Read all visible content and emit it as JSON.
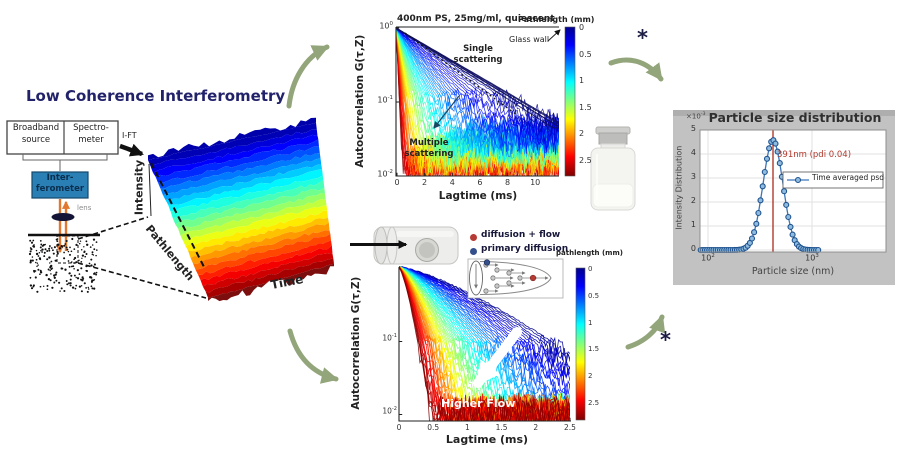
{
  "title": "Low Coherence Interferometry",
  "diagram": {
    "box_broadband": [
      "Broadband",
      "source"
    ],
    "box_spectrometer": [
      "Spectro-",
      "meter"
    ],
    "ift": "I-FT",
    "interferometer": [
      "Inter-",
      "ferometer"
    ],
    "lens": "lens",
    "waterfall_axes": {
      "z": "Intensity",
      "y": "Pathlength",
      "x": "Time"
    }
  },
  "quiescent_plot": {
    "title": "400nm PS, 25mg/ml, quiescent",
    "ylabel": "Autocorrelation G(τ,Z)",
    "xlabel": "Lagtime (ms)",
    "colorbar_label": "Pathlength (mm)",
    "colorbar_ticks": [
      "0",
      "0.5",
      "1",
      "1.5",
      "2",
      "2.5"
    ],
    "xticks": [
      "0",
      "2",
      "4",
      "6",
      "8",
      "10"
    ],
    "yticks": [
      [
        "10",
        "0"
      ],
      [
        "10",
        "-1"
      ],
      [
        "10",
        "-2"
      ]
    ],
    "ann_glass_wall": "Glass wall",
    "ann_single": [
      "Single",
      "scattering"
    ],
    "ann_multiple": [
      "Multiple",
      "scattering"
    ]
  },
  "flow_plot": {
    "ylabel": "Autocorrelation G(τ,Z)",
    "xlabel": "Lagtime (ms)",
    "colorbar_label": "pathlength (mm)",
    "colorbar_ticks": [
      "0",
      "0.5",
      "1",
      "1.5",
      "2",
      "2.5"
    ],
    "xticks": [
      "0",
      "0.5",
      "1",
      "1.5",
      "2",
      "2.5"
    ],
    "yticks": [
      [
        "10",
        "-1"
      ],
      [
        "10",
        "-2"
      ]
    ],
    "legend": [
      {
        "label": "diffusion + flow",
        "color": "#b63b34"
      },
      {
        "label": "primary diffusion",
        "color": "#344f8c"
      }
    ],
    "ann_flow": "Higher Flow"
  },
  "psd_plot": {
    "title": "Particle size distribution",
    "ylabel": "Intensity Distribution",
    "xlabel": "Particle size (nm)",
    "y_multiplier": [
      "×10",
      "-3"
    ],
    "yticks": [
      "0",
      "1",
      "2",
      "3",
      "4",
      "5"
    ],
    "xticks": [
      [
        "10",
        "2"
      ],
      [
        "10",
        "3"
      ],
      [
        "10",
        "4"
      ]
    ],
    "annotation": "391nm (pdi 0.04)",
    "legend": "Time averaged psd"
  },
  "asterisk": "*",
  "colors": {
    "arrow_green": "#93a57a",
    "title_navy": "#22226b",
    "interferometer_fill": "#2a7fb5",
    "interferometer_text": "#0b2f4e",
    "beam_orange": "#e2782f",
    "annotation_red": "#b03a2e",
    "psd_line_blue": "#3a76ba",
    "psd_marker_fill": "#8fbbdf",
    "psd_marker_edge": "#1f538f",
    "panel_gray": "#c2c2c2",
    "multiple_arrow": "#1d4663"
  },
  "chart_data": [
    {
      "id": "autocorrelation-quiescent",
      "type": "line",
      "title": "400nm PS, 25mg/ml, quiescent",
      "xlabel": "Lagtime (ms)",
      "ylabel": "Autocorrelation G(τ,Z)",
      "x_scale": "linear",
      "y_scale": "log",
      "xlim": [
        0,
        11.8
      ],
      "ylim": [
        0.01,
        1
      ],
      "xticks": [
        0,
        2,
        4,
        6,
        8,
        10
      ],
      "yticks_log10": [
        0,
        -1,
        -2
      ],
      "colorbar": {
        "label": "Pathlength (mm)",
        "min": 0,
        "max": 2.5,
        "ticks": [
          0,
          0.5,
          1,
          1.5,
          2,
          2.5
        ],
        "colormap": "jet",
        "orientation": "vertical"
      },
      "series_summary": [
        {
          "name": "single scattering envelope (pathlength ~0, glass wall, dark blue)",
          "x": [
            0,
            2,
            4,
            6,
            8,
            10,
            11.8
          ],
          "G": [
            1.0,
            0.55,
            0.31,
            0.17,
            0.095,
            0.055,
            0.045
          ]
        },
        {
          "name": "multiple scattering (pathlength ~2.5 mm, dark red)",
          "x": [
            0,
            0.2,
            0.4,
            0.6
          ],
          "G": [
            1.0,
            0.18,
            0.035,
            0.012
          ]
        }
      ],
      "annotations": [
        "Glass wall",
        "Single scattering",
        "Multiple scattering"
      ],
      "description": "Fan of ~70 exponentially decaying autocorrelation curves colored by pathlength (jet colormap); shallow-pathlength (blue) curves decay slowly, deep-pathlength (red) curves decay fast; noise floor speckle near G=0.01-0.05"
    },
    {
      "id": "autocorrelation-flow",
      "type": "line",
      "xlabel": "Lagtime (ms)",
      "ylabel": "Autocorrelation G(τ,Z)",
      "x_scale": "linear",
      "y_scale": "log",
      "xlim": [
        0,
        2.52
      ],
      "ylim": [
        0.01,
        1
      ],
      "xticks": [
        0,
        0.5,
        1,
        1.5,
        2,
        2.5
      ],
      "yticks_log10": [
        -1,
        -2
      ],
      "colorbar": {
        "label": "pathlength (mm)",
        "min": 0,
        "max": 2.5,
        "ticks": [
          0,
          0.5,
          1,
          1.5,
          2,
          2.5
        ],
        "colormap": "jet",
        "orientation": "vertical"
      },
      "legend": [
        "diffusion + flow",
        "primary diffusion"
      ],
      "series_summary": [
        {
          "name": "primary diffusion (pathlength ~0, blue)",
          "x": [
            0,
            1,
            2,
            2.5
          ],
          "G": [
            1.0,
            0.45,
            0.13,
            0.07
          ]
        },
        {
          "name": "diffusion + flow (pathlength ~2.5 mm, red)",
          "x": [
            0,
            0.2,
            0.45
          ],
          "G": [
            1.0,
            0.3,
            0.01
          ]
        }
      ],
      "annotations": [
        "Higher Flow (white arrow pointing down-left)"
      ],
      "description": "Fan of decaying autocorrelation curves under flow; deeper pathlength (red) decays fastest; white arrow labelled Higher Flow points toward faster decay"
    },
    {
      "id": "particle-size-distribution",
      "type": "line+marker",
      "title": "Particle size distribution",
      "xlabel": "Particle size (nm)",
      "ylabel": "Intensity Distribution",
      "x_scale": "log",
      "xlim": [
        79,
        6300
      ],
      "ylim": [
        0,
        0.005
      ],
      "xticks": [
        100,
        1000,
        10000
      ],
      "yticks": [
        0,
        0.001,
        0.002,
        0.003,
        0.004,
        0.005
      ],
      "peak_nm": 391,
      "pdi": 0.04,
      "peak_intensity": 0.0046,
      "vline_nm": 391,
      "legend": [
        "Time averaged psd"
      ],
      "series": [
        {
          "name": "Time averaged psd",
          "x_nm": [
            85,
            150,
            250,
            290,
            320,
            355,
            391,
            430,
            470,
            520,
            580,
            650,
            750,
            900,
            1100
          ],
          "intensity_x1e3": [
            0,
            0,
            0.3,
            1.2,
            2.6,
            4.0,
            4.6,
            4.4,
            3.5,
            2.2,
            1.0,
            0.35,
            0.05,
            0,
            0
          ]
        }
      ],
      "description": "Gaussian-like peak on log x-axis centered near 400 nm, red vertical line at 391 nm, annotation 391nm (pdi 0.04)"
    }
  ]
}
